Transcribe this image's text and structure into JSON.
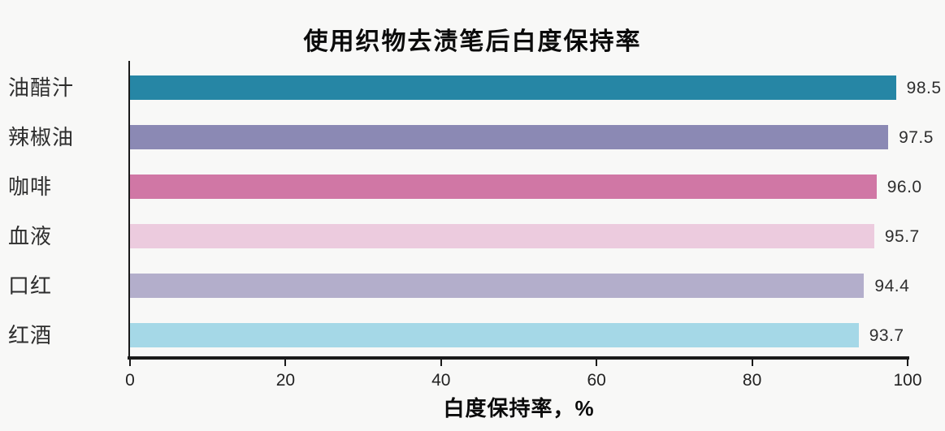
{
  "chart_data": {
    "type": "bar",
    "orientation": "horizontal",
    "title": "使用织物去渍笔后白度保持率",
    "xlabel": "白度保持率，%",
    "categories": [
      "油醋汁",
      "辣椒油",
      "咖啡",
      "血液",
      "口红",
      "红酒"
    ],
    "values": [
      98.5,
      97.5,
      96.0,
      95.7,
      94.4,
      93.7
    ],
    "value_labels": [
      "98.5",
      "97.5",
      "96.0",
      "95.7",
      "94.4",
      "93.7"
    ],
    "bar_colors": [
      "#2686a5",
      "#8b89b4",
      "#d077a5",
      "#eccbde",
      "#b3aecb",
      "#a5d8e7"
    ],
    "xlim": [
      0,
      100
    ],
    "x_ticks": [
      0,
      20,
      40,
      60,
      80,
      100
    ],
    "grid": false,
    "legend": "none",
    "background_color": "#f8f8f7",
    "axis_color": "#1a1a1a",
    "text_color": "#2d2d2d"
  }
}
